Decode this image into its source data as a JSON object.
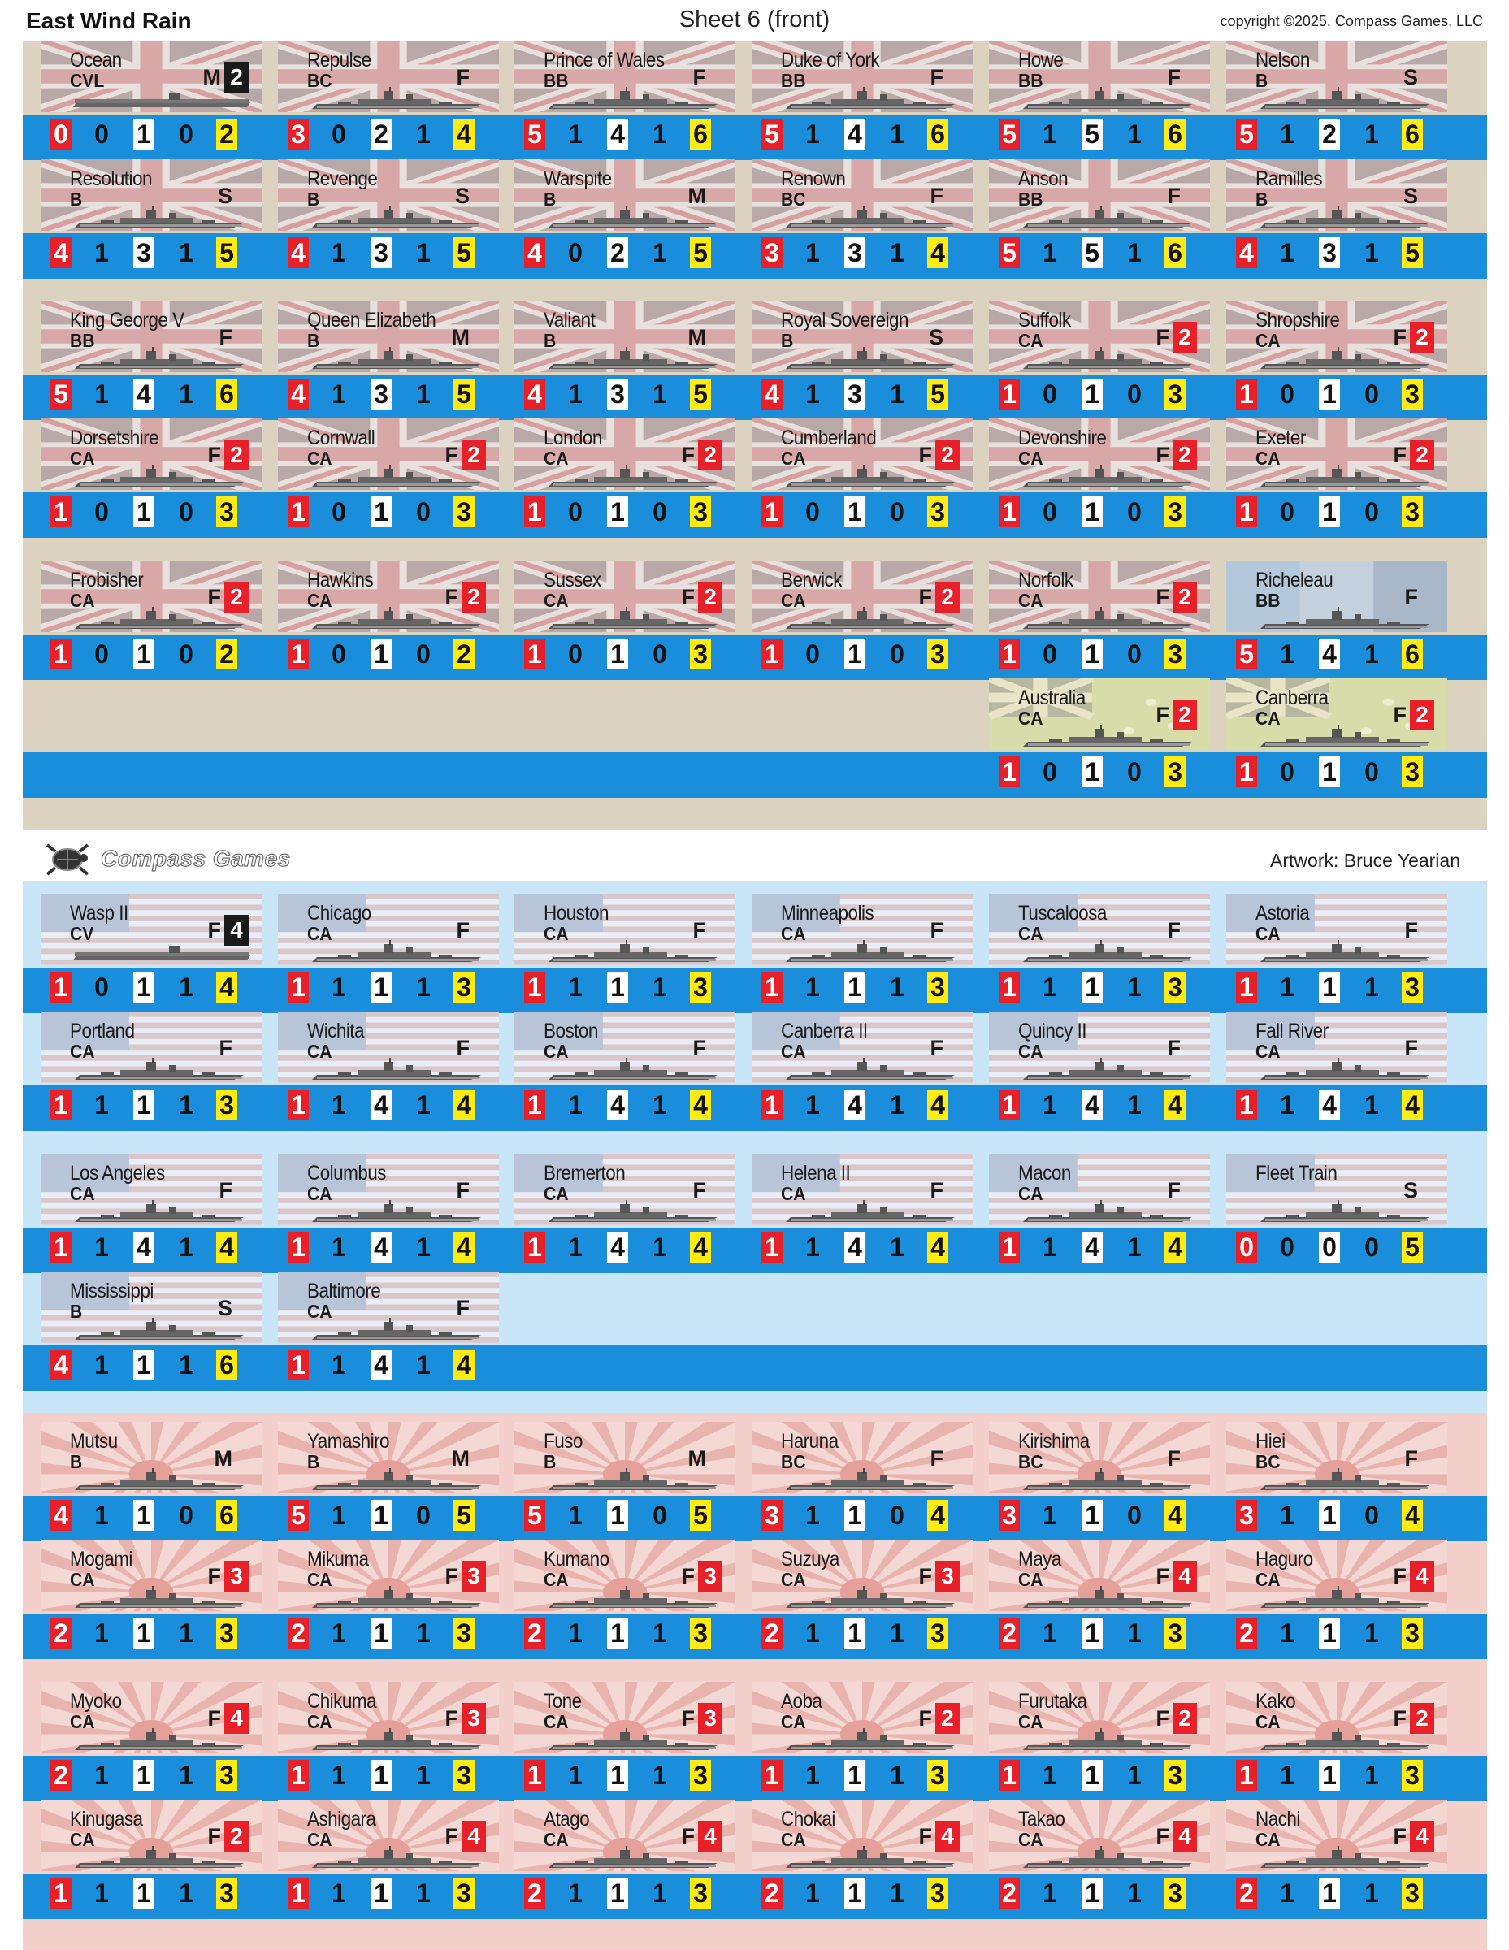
{
  "header": {
    "title": "East Wind Rain",
    "sheet": "Sheet 6 (front)",
    "copyright": "copyright ©2025, Compass Games, LLC"
  },
  "footer_band": {
    "logo_text": "Compass Games",
    "artwork": "Artwork: Bruce Yearian"
  },
  "colors": {
    "uk_bg": "#dcd2c0",
    "us_bg": "#c8e6f8",
    "jp_bg": "#f4d0cc",
    "stat_band": "#1a8edb",
    "red_box": "#e8202a",
    "yellow_box": "#ffeb14",
    "air_box": "#1a1a1a"
  },
  "counters": [
    {
      "name": "Ocean",
      "type": "CVL",
      "speed": "M",
      "air": "2",
      "air_color": "black",
      "nation": "uk",
      "stats": [
        "0",
        "0",
        "1",
        "0",
        "2"
      ]
    },
    {
      "name": "Repulse",
      "type": "BC",
      "speed": "F",
      "nation": "uk",
      "stats": [
        "3",
        "0",
        "2",
        "1",
        "4"
      ]
    },
    {
      "name": "Prince of Wales",
      "type": "BB",
      "speed": "F",
      "nation": "uk",
      "stats": [
        "5",
        "1",
        "4",
        "1",
        "6"
      ]
    },
    {
      "name": "Duke of York",
      "type": "BB",
      "speed": "F",
      "nation": "uk",
      "stats": [
        "5",
        "1",
        "4",
        "1",
        "6"
      ]
    },
    {
      "name": "Howe",
      "type": "BB",
      "speed": "F",
      "nation": "uk",
      "stats": [
        "5",
        "1",
        "5",
        "1",
        "6"
      ]
    },
    {
      "name": "Nelson",
      "type": "B",
      "speed": "S",
      "nation": "uk",
      "stats": [
        "5",
        "1",
        "2",
        "1",
        "6"
      ]
    },
    {
      "name": "Resolution",
      "type": "B",
      "speed": "S",
      "nation": "uk",
      "stats": [
        "4",
        "1",
        "3",
        "1",
        "5"
      ]
    },
    {
      "name": "Revenge",
      "type": "B",
      "speed": "S",
      "nation": "uk",
      "stats": [
        "4",
        "1",
        "3",
        "1",
        "5"
      ]
    },
    {
      "name": "Warspite",
      "type": "B",
      "speed": "M",
      "nation": "uk",
      "stats": [
        "4",
        "0",
        "2",
        "1",
        "5"
      ]
    },
    {
      "name": "Renown",
      "type": "BC",
      "speed": "F",
      "nation": "uk",
      "stats": [
        "3",
        "1",
        "3",
        "1",
        "4"
      ]
    },
    {
      "name": "Anson",
      "type": "BB",
      "speed": "F",
      "nation": "uk",
      "stats": [
        "5",
        "1",
        "5",
        "1",
        "6"
      ]
    },
    {
      "name": "Ramilles",
      "type": "B",
      "speed": "S",
      "nation": "uk",
      "stats": [
        "4",
        "1",
        "3",
        "1",
        "5"
      ]
    },
    {
      "name": "King George V",
      "type": "BB",
      "speed": "F",
      "nation": "uk",
      "stats": [
        "5",
        "1",
        "4",
        "1",
        "6"
      ]
    },
    {
      "name": "Queen Elizabeth",
      "type": "B",
      "speed": "M",
      "nation": "uk",
      "stats": [
        "4",
        "1",
        "3",
        "1",
        "5"
      ]
    },
    {
      "name": "Valiant",
      "type": "B",
      "speed": "M",
      "nation": "uk",
      "stats": [
        "4",
        "1",
        "3",
        "1",
        "5"
      ]
    },
    {
      "name": "Royal Sovereign",
      "type": "B",
      "speed": "S",
      "nation": "uk",
      "stats": [
        "4",
        "1",
        "3",
        "1",
        "5"
      ]
    },
    {
      "name": "Suffolk",
      "type": "CA",
      "speed": "F",
      "air": "2",
      "air_color": "red",
      "nation": "uk",
      "stats": [
        "1",
        "0",
        "1",
        "0",
        "3"
      ]
    },
    {
      "name": "Shropshire",
      "type": "CA",
      "speed": "F",
      "air": "2",
      "air_color": "red",
      "nation": "uk",
      "stats": [
        "1",
        "0",
        "1",
        "0",
        "3"
      ]
    },
    {
      "name": "Dorsetshire",
      "type": "CA",
      "speed": "F",
      "air": "2",
      "air_color": "red",
      "nation": "uk",
      "stats": [
        "1",
        "0",
        "1",
        "0",
        "3"
      ]
    },
    {
      "name": "Cornwall",
      "type": "CA",
      "speed": "F",
      "air": "2",
      "air_color": "red",
      "nation": "uk",
      "stats": [
        "1",
        "0",
        "1",
        "0",
        "3"
      ]
    },
    {
      "name": "London",
      "type": "CA",
      "speed": "F",
      "air": "2",
      "air_color": "red",
      "nation": "uk",
      "stats": [
        "1",
        "0",
        "1",
        "0",
        "3"
      ]
    },
    {
      "name": "Cumberland",
      "type": "CA",
      "speed": "F",
      "air": "2",
      "air_color": "red",
      "nation": "uk",
      "stats": [
        "1",
        "0",
        "1",
        "0",
        "3"
      ]
    },
    {
      "name": "Devonshire",
      "type": "CA",
      "speed": "F",
      "air": "2",
      "air_color": "red",
      "nation": "uk",
      "stats": [
        "1",
        "0",
        "1",
        "0",
        "3"
      ]
    },
    {
      "name": "Exeter",
      "type": "CA",
      "speed": "F",
      "air": "2",
      "air_color": "red",
      "nation": "uk",
      "stats": [
        "1",
        "0",
        "1",
        "0",
        "3"
      ]
    },
    {
      "name": "Frobisher",
      "type": "CA",
      "speed": "F",
      "air": "2",
      "air_color": "red",
      "nation": "uk",
      "stats": [
        "1",
        "0",
        "1",
        "0",
        "2"
      ]
    },
    {
      "name": "Hawkins",
      "type": "CA",
      "speed": "F",
      "air": "2",
      "air_color": "red",
      "nation": "uk",
      "stats": [
        "1",
        "0",
        "1",
        "0",
        "2"
      ]
    },
    {
      "name": "Sussex",
      "type": "CA",
      "speed": "F",
      "air": "2",
      "air_color": "red",
      "nation": "uk",
      "stats": [
        "1",
        "0",
        "1",
        "0",
        "3"
      ]
    },
    {
      "name": "Berwick",
      "type": "CA",
      "speed": "F",
      "air": "2",
      "air_color": "red",
      "nation": "uk",
      "stats": [
        "1",
        "0",
        "1",
        "0",
        "3"
      ]
    },
    {
      "name": "Norfolk",
      "type": "CA",
      "speed": "F",
      "air": "2",
      "air_color": "red",
      "nation": "uk",
      "stats": [
        "1",
        "0",
        "1",
        "0",
        "3"
      ]
    },
    {
      "name": "Richeleau",
      "type": "BB",
      "speed": "F",
      "nation": "fr",
      "stats": [
        "5",
        "1",
        "4",
        "1",
        "6"
      ]
    },
    {
      "name": "Australia",
      "type": "CA",
      "speed": "F",
      "air": "2",
      "air_color": "red",
      "nation": "au",
      "stats": [
        "1",
        "0",
        "1",
        "0",
        "3"
      ]
    },
    {
      "name": "Canberra",
      "type": "CA",
      "speed": "F",
      "air": "2",
      "air_color": "red",
      "nation": "au",
      "stats": [
        "1",
        "0",
        "1",
        "0",
        "3"
      ]
    },
    {
      "name": "Wasp II",
      "type": "CV",
      "speed": "F",
      "air": "4",
      "air_color": "black",
      "nation": "us",
      "stats": [
        "1",
        "0",
        "1",
        "1",
        "4"
      ]
    },
    {
      "name": "Chicago",
      "type": "CA",
      "speed": "F",
      "nation": "us",
      "stats": [
        "1",
        "1",
        "1",
        "1",
        "3"
      ]
    },
    {
      "name": "Houston",
      "type": "CA",
      "speed": "F",
      "nation": "us",
      "stats": [
        "1",
        "1",
        "1",
        "1",
        "3"
      ]
    },
    {
      "name": "Minneapolis",
      "type": "CA",
      "speed": "F",
      "nation": "us",
      "stats": [
        "1",
        "1",
        "1",
        "1",
        "3"
      ]
    },
    {
      "name": "Tuscaloosa",
      "type": "CA",
      "speed": "F",
      "nation": "us",
      "stats": [
        "1",
        "1",
        "1",
        "1",
        "3"
      ]
    },
    {
      "name": "Astoria",
      "type": "CA",
      "speed": "F",
      "nation": "us",
      "stats": [
        "1",
        "1",
        "1",
        "1",
        "3"
      ]
    },
    {
      "name": "Portland",
      "type": "CA",
      "speed": "F",
      "nation": "us",
      "stats": [
        "1",
        "1",
        "1",
        "1",
        "3"
      ]
    },
    {
      "name": "Wichita",
      "type": "CA",
      "speed": "F",
      "nation": "us",
      "stats": [
        "1",
        "1",
        "4",
        "1",
        "4"
      ]
    },
    {
      "name": "Boston",
      "type": "CA",
      "speed": "F",
      "nation": "us",
      "stats": [
        "1",
        "1",
        "4",
        "1",
        "4"
      ]
    },
    {
      "name": "Canberra II",
      "type": "CA",
      "speed": "F",
      "nation": "us",
      "stats": [
        "1",
        "1",
        "4",
        "1",
        "4"
      ]
    },
    {
      "name": "Quincy II",
      "type": "CA",
      "speed": "F",
      "nation": "us",
      "stats": [
        "1",
        "1",
        "4",
        "1",
        "4"
      ]
    },
    {
      "name": "Fall River",
      "type": "CA",
      "speed": "F",
      "nation": "us",
      "stats": [
        "1",
        "1",
        "4",
        "1",
        "4"
      ]
    },
    {
      "name": "Los Angeles",
      "type": "CA",
      "speed": "F",
      "nation": "us",
      "stats": [
        "1",
        "1",
        "4",
        "1",
        "4"
      ]
    },
    {
      "name": "Columbus",
      "type": "CA",
      "speed": "F",
      "nation": "us",
      "stats": [
        "1",
        "1",
        "4",
        "1",
        "4"
      ]
    },
    {
      "name": "Bremerton",
      "type": "CA",
      "speed": "F",
      "nation": "us",
      "stats": [
        "1",
        "1",
        "4",
        "1",
        "4"
      ]
    },
    {
      "name": "Helena II",
      "type": "CA",
      "speed": "F",
      "nation": "us",
      "stats": [
        "1",
        "1",
        "4",
        "1",
        "4"
      ]
    },
    {
      "name": "Macon",
      "type": "CA",
      "speed": "F",
      "nation": "us",
      "stats": [
        "1",
        "1",
        "4",
        "1",
        "4"
      ]
    },
    {
      "name": "Fleet Train",
      "type": "",
      "speed": "S",
      "nation": "us",
      "stats": [
        "0",
        "0",
        "0",
        "0",
        "5"
      ]
    },
    {
      "name": "Mississippi",
      "type": "B",
      "speed": "S",
      "nation": "us",
      "stats": [
        "4",
        "1",
        "1",
        "1",
        "6"
      ]
    },
    {
      "name": "Baltimore",
      "type": "CA",
      "speed": "F",
      "nation": "us",
      "stats": [
        "1",
        "1",
        "4",
        "1",
        "4"
      ]
    },
    {
      "name": "Mutsu",
      "type": "B",
      "speed": "M",
      "nation": "jp",
      "stats": [
        "4",
        "1",
        "1",
        "0",
        "6"
      ]
    },
    {
      "name": "Yamashiro",
      "type": "B",
      "speed": "M",
      "nation": "jp",
      "stats": [
        "5",
        "1",
        "1",
        "0",
        "5"
      ]
    },
    {
      "name": "Fuso",
      "type": "B",
      "speed": "M",
      "nation": "jp",
      "stats": [
        "5",
        "1",
        "1",
        "0",
        "5"
      ]
    },
    {
      "name": "Haruna",
      "type": "BC",
      "speed": "F",
      "nation": "jp",
      "stats": [
        "3",
        "1",
        "1",
        "0",
        "4"
      ]
    },
    {
      "name": "Kirishima",
      "type": "BC",
      "speed": "F",
      "nation": "jp",
      "stats": [
        "3",
        "1",
        "1",
        "0",
        "4"
      ]
    },
    {
      "name": "Hiei",
      "type": "BC",
      "speed": "F",
      "nation": "jp",
      "stats": [
        "3",
        "1",
        "1",
        "0",
        "4"
      ]
    },
    {
      "name": "Mogami",
      "type": "CA",
      "speed": "F",
      "air": "3",
      "air_color": "red",
      "nation": "jp",
      "stats": [
        "2",
        "1",
        "1",
        "1",
        "3"
      ]
    },
    {
      "name": "Mikuma",
      "type": "CA",
      "speed": "F",
      "air": "3",
      "air_color": "red",
      "nation": "jp",
      "stats": [
        "2",
        "1",
        "1",
        "1",
        "3"
      ]
    },
    {
      "name": "Kumano",
      "type": "CA",
      "speed": "F",
      "air": "3",
      "air_color": "red",
      "nation": "jp",
      "stats": [
        "2",
        "1",
        "1",
        "1",
        "3"
      ]
    },
    {
      "name": "Suzuya",
      "type": "CA",
      "speed": "F",
      "air": "3",
      "air_color": "red",
      "nation": "jp",
      "stats": [
        "2",
        "1",
        "1",
        "1",
        "3"
      ]
    },
    {
      "name": "Maya",
      "type": "CA",
      "speed": "F",
      "air": "4",
      "air_color": "red",
      "nation": "jp",
      "stats": [
        "2",
        "1",
        "1",
        "1",
        "3"
      ]
    },
    {
      "name": "Haguro",
      "type": "CA",
      "speed": "F",
      "air": "4",
      "air_color": "red",
      "nation": "jp",
      "stats": [
        "2",
        "1",
        "1",
        "1",
        "3"
      ]
    },
    {
      "name": "Myoko",
      "type": "CA",
      "speed": "F",
      "air": "4",
      "air_color": "red",
      "nation": "jp",
      "stats": [
        "2",
        "1",
        "1",
        "1",
        "3"
      ]
    },
    {
      "name": "Chikuma",
      "type": "CA",
      "speed": "F",
      "air": "3",
      "air_color": "red",
      "nation": "jp",
      "stats": [
        "1",
        "1",
        "1",
        "1",
        "3"
      ]
    },
    {
      "name": "Tone",
      "type": "CA",
      "speed": "F",
      "air": "3",
      "air_color": "red",
      "nation": "jp",
      "stats": [
        "1",
        "1",
        "1",
        "1",
        "3"
      ]
    },
    {
      "name": "Aoba",
      "type": "CA",
      "speed": "F",
      "air": "2",
      "air_color": "red",
      "nation": "jp",
      "stats": [
        "1",
        "1",
        "1",
        "1",
        "3"
      ]
    },
    {
      "name": "Furutaka",
      "type": "CA",
      "speed": "F",
      "air": "2",
      "air_color": "red",
      "nation": "jp",
      "stats": [
        "1",
        "1",
        "1",
        "1",
        "3"
      ]
    },
    {
      "name": "Kako",
      "type": "CA",
      "speed": "F",
      "air": "2",
      "air_color": "red",
      "nation": "jp",
      "stats": [
        "1",
        "1",
        "1",
        "1",
        "3"
      ]
    },
    {
      "name": "Kinugasa",
      "type": "CA",
      "speed": "F",
      "air": "2",
      "air_color": "red",
      "nation": "jp",
      "stats": [
        "1",
        "1",
        "1",
        "1",
        "3"
      ]
    },
    {
      "name": "Ashigara",
      "type": "CA",
      "speed": "F",
      "air": "4",
      "air_color": "red",
      "nation": "jp",
      "stats": [
        "1",
        "1",
        "1",
        "1",
        "3"
      ]
    },
    {
      "name": "Atago",
      "type": "CA",
      "speed": "F",
      "air": "4",
      "air_color": "red",
      "nation": "jp",
      "stats": [
        "2",
        "1",
        "1",
        "1",
        "3"
      ]
    },
    {
      "name": "Chokai",
      "type": "CA",
      "speed": "F",
      "air": "4",
      "air_color": "red",
      "nation": "jp",
      "stats": [
        "2",
        "1",
        "1",
        "1",
        "3"
      ]
    },
    {
      "name": "Takao",
      "type": "CA",
      "speed": "F",
      "air": "4",
      "air_color": "red",
      "nation": "jp",
      "stats": [
        "2",
        "1",
        "1",
        "1",
        "3"
      ]
    },
    {
      "name": "Nachi",
      "type": "CA",
      "speed": "F",
      "air": "4",
      "air_color": "red",
      "nation": "jp",
      "stats": [
        "2",
        "1",
        "1",
        "1",
        "3"
      ]
    }
  ]
}
